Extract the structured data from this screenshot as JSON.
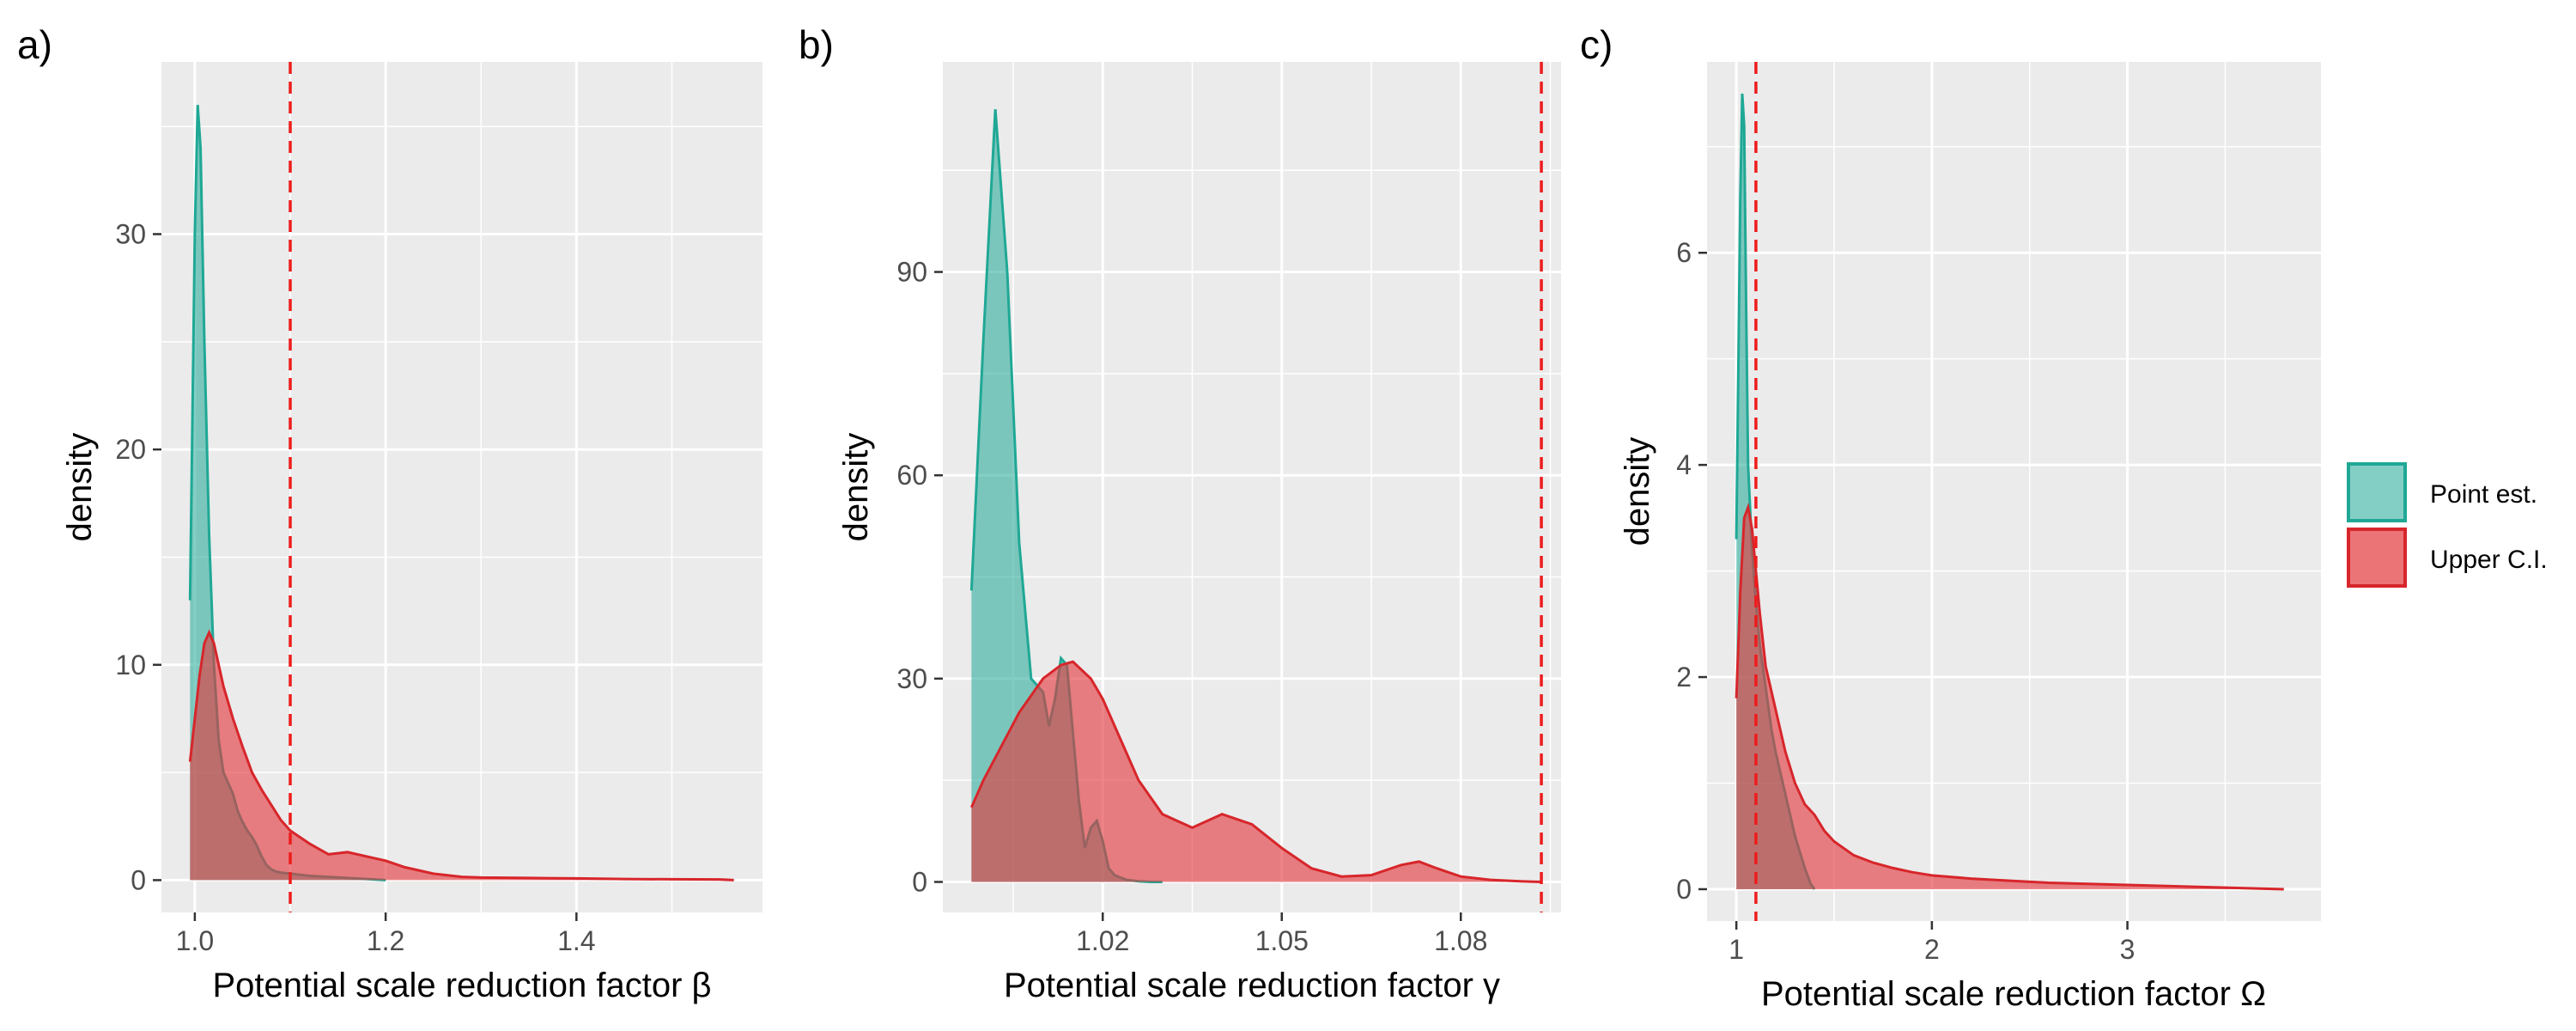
{
  "legend": {
    "position": "right",
    "items": [
      {
        "label": "Point est.",
        "fill": "#1fa895",
        "stroke": "#1fa895"
      },
      {
        "label": "Upper C.I.",
        "fill": "#e3393d",
        "stroke": "#d7262b"
      }
    ]
  },
  "colors": {
    "panel_bg": "#ebebeb",
    "grid": "#ffffff",
    "reference_line": "#ee1c1c",
    "point_fill": "#1fa895",
    "upper_fill": "#e3393d",
    "overlap_fill": "#8b5a50",
    "axis_text": "#4d4d4d"
  },
  "chart_data": [
    {
      "type": "area",
      "panel_tag": "a)",
      "xlabel": "Potential scale reduction factor β",
      "ylabel": "density",
      "xlim": [
        0.965,
        1.595
      ],
      "ylim": [
        -1.5,
        38
      ],
      "xticks": [
        1.0,
        1.2,
        1.4
      ],
      "xtick_labels": [
        "1.0",
        "1.2",
        "1.4"
      ],
      "yticks": [
        0,
        10,
        20,
        30
      ],
      "ytick_labels": [
        "0",
        "10",
        "20",
        "30"
      ],
      "reference_x": 1.1,
      "grid": true,
      "series": [
        {
          "name": "Point est.",
          "x": [
            0.995,
            1.0,
            1.003,
            1.006,
            1.01,
            1.015,
            1.02,
            1.025,
            1.03,
            1.035,
            1.04,
            1.045,
            1.05,
            1.055,
            1.06,
            1.065,
            1.07,
            1.075,
            1.08,
            1.085,
            1.09,
            1.1,
            1.11,
            1.12,
            1.14,
            1.16,
            1.18,
            1.2
          ],
          "values": [
            13,
            30,
            36,
            34,
            25,
            16,
            10,
            6.5,
            5,
            4.5,
            4,
            3.2,
            2.7,
            2.3,
            2,
            1.6,
            1.1,
            0.7,
            0.5,
            0.4,
            0.35,
            0.3,
            0.25,
            0.2,
            0.15,
            0.1,
            0.05,
            0
          ]
        },
        {
          "name": "Upper C.I.",
          "x": [
            0.995,
            1.0,
            1.005,
            1.01,
            1.015,
            1.02,
            1.03,
            1.04,
            1.05,
            1.06,
            1.07,
            1.08,
            1.09,
            1.1,
            1.12,
            1.14,
            1.16,
            1.18,
            1.2,
            1.22,
            1.25,
            1.28,
            1.3,
            1.35,
            1.4,
            1.45,
            1.5,
            1.55,
            1.565
          ],
          "values": [
            5.5,
            7.5,
            9.5,
            11,
            11.5,
            11,
            9,
            7.5,
            6.2,
            5,
            4.2,
            3.5,
            2.8,
            2.3,
            1.7,
            1.2,
            1.3,
            1.1,
            0.9,
            0.6,
            0.3,
            0.15,
            0.12,
            0.1,
            0.08,
            0.05,
            0.04,
            0.03,
            0
          ]
        }
      ]
    },
    {
      "type": "area",
      "panel_tag": "b)",
      "xlabel": "Potential scale reduction factor γ",
      "ylabel": "density",
      "xlim": [
        0.9932,
        1.0968
      ],
      "ylim": [
        -4.5,
        121
      ],
      "xticks": [
        1.02,
        1.05,
        1.08
      ],
      "xtick_labels": [
        "1.02",
        "1.05",
        "1.08"
      ],
      "yticks": [
        0,
        30,
        60,
        90
      ],
      "ytick_labels": [
        "0",
        "30",
        "60",
        "90"
      ],
      "reference_x": 1.0935,
      "grid": true,
      "series": [
        {
          "name": "Point est.",
          "x": [
            0.998,
            1.0,
            1.002,
            1.004,
            1.006,
            1.008,
            1.01,
            1.011,
            1.012,
            1.013,
            1.014,
            1.015,
            1.016,
            1.017,
            1.018,
            1.019,
            1.02,
            1.021,
            1.022,
            1.024,
            1.026,
            1.028,
            1.03
          ],
          "values": [
            43,
            80,
            114,
            90,
            50,
            30,
            28,
            23,
            27,
            33,
            32,
            22,
            12,
            5,
            8,
            9,
            6,
            2,
            1,
            0.3,
            0.1,
            0,
            0
          ]
        },
        {
          "name": "Upper C.I.",
          "x": [
            0.998,
            1.0,
            1.003,
            1.006,
            1.01,
            1.013,
            1.015,
            1.018,
            1.02,
            1.023,
            1.026,
            1.03,
            1.035,
            1.04,
            1.045,
            1.05,
            1.055,
            1.06,
            1.065,
            1.07,
            1.073,
            1.076,
            1.08,
            1.085,
            1.09,
            1.0935
          ],
          "values": [
            11,
            15,
            20,
            25,
            30,
            32,
            32.5,
            30,
            27,
            21,
            15,
            10,
            8,
            10,
            8.5,
            5,
            2,
            0.8,
            1,
            2.5,
            3,
            2,
            0.8,
            0.3,
            0.1,
            0
          ]
        }
      ]
    },
    {
      "type": "area",
      "panel_tag": "c)",
      "xlabel": "Potential scale reduction factor Ω",
      "ylabel": "density",
      "xlim": [
        0.85,
        3.99
      ],
      "ylim": [
        -0.3,
        7.8
      ],
      "xticks": [
        1,
        2,
        3
      ],
      "xtick_labels": [
        "1",
        "2",
        "3"
      ],
      "yticks": [
        0,
        2,
        4,
        6
      ],
      "ytick_labels": [
        "0",
        "2",
        "4",
        "6"
      ],
      "reference_x": 1.1,
      "grid": true,
      "series": [
        {
          "name": "Point est.",
          "x": [
            1.0,
            1.02,
            1.03,
            1.04,
            1.05,
            1.06,
            1.08,
            1.1,
            1.12,
            1.15,
            1.18,
            1.2,
            1.25,
            1.3,
            1.35,
            1.38,
            1.4
          ],
          "values": [
            3.3,
            6.5,
            7.5,
            7.2,
            5.5,
            4.0,
            3.2,
            2.7,
            2.3,
            1.9,
            1.5,
            1.3,
            0.9,
            0.5,
            0.2,
            0.05,
            0
          ]
        },
        {
          "name": "Upper C.I.",
          "x": [
            1.0,
            1.02,
            1.04,
            1.06,
            1.08,
            1.1,
            1.12,
            1.15,
            1.2,
            1.25,
            1.3,
            1.35,
            1.4,
            1.45,
            1.5,
            1.6,
            1.7,
            1.8,
            1.9,
            2.0,
            2.2,
            2.4,
            2.6,
            2.8,
            3.0,
            3.2,
            3.4,
            3.6,
            3.8
          ],
          "values": [
            1.8,
            2.8,
            3.5,
            3.6,
            3.4,
            3.0,
            2.6,
            2.1,
            1.7,
            1.3,
            1.0,
            0.8,
            0.7,
            0.55,
            0.45,
            0.32,
            0.25,
            0.2,
            0.16,
            0.13,
            0.1,
            0.08,
            0.06,
            0.05,
            0.04,
            0.03,
            0.02,
            0.01,
            0
          ]
        }
      ]
    }
  ]
}
